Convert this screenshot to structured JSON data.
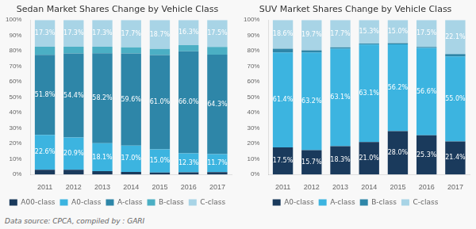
{
  "chart_data": [
    {
      "type": "bar",
      "stacked": true,
      "title": "Sedan Market Shares Change by Vehicle Class",
      "categories": [
        "2011",
        "2012",
        "2013",
        "2014",
        "2015",
        "2016",
        "2017"
      ],
      "series": [
        {
          "name": "A00-class",
          "color": "#1a3a5c",
          "values": [
            3.0,
            3.0,
            2.1,
            1.7,
            1.3,
            1.4,
            1.5
          ]
        },
        {
          "name": "A0-class",
          "color": "#3cb4e0",
          "values": [
            22.6,
            20.9,
            18.1,
            17.0,
            15.0,
            12.3,
            11.7
          ],
          "value_labels": [
            "22.6%",
            "20.9%",
            "18.1%",
            "17.0%",
            "15.0%",
            "12.3%",
            "11.7%"
          ]
        },
        {
          "name": "A-class",
          "color": "#2e86a8",
          "values": [
            51.8,
            54.4,
            58.2,
            59.6,
            61.0,
            66.0,
            64.3
          ],
          "value_labels": [
            "51.8%",
            "54.4%",
            "58.2%",
            "59.6%",
            "61.0%",
            "66.0%",
            "64.3%"
          ]
        },
        {
          "name": "B-class",
          "color": "#4bafc4",
          "values": [
            5.3,
            4.4,
            4.3,
            4.0,
            4.0,
            4.0,
            5.0
          ]
        },
        {
          "name": "C-class",
          "color": "#a8d4e6",
          "values": [
            17.3,
            17.3,
            17.3,
            17.7,
            18.7,
            16.3,
            17.5
          ],
          "value_labels": [
            "17.3%",
            "17.3%",
            "17.3%",
            "17.7%",
            "18.7%",
            "16.3%",
            "17.5%"
          ]
        }
      ],
      "ylim": [
        0,
        100
      ],
      "yticks": [
        {
          "value": 0,
          "label": "0%"
        },
        {
          "value": 10,
          "label": "10%"
        },
        {
          "value": 20,
          "label": "20%"
        },
        {
          "value": 30,
          "label": "30%"
        },
        {
          "value": 40,
          "label": "40%"
        },
        {
          "value": 50,
          "label": "50%"
        },
        {
          "value": 60,
          "label": "60%"
        },
        {
          "value": 70,
          "label": "70%"
        },
        {
          "value": 80,
          "label": "80%"
        },
        {
          "value": 90,
          "label": "90%"
        },
        {
          "value": 100,
          "label": "100%"
        }
      ],
      "grid": false,
      "legend": "bottom"
    },
    {
      "type": "bar",
      "stacked": true,
      "title": "SUV Market Shares Change by Vehicle Class",
      "categories": [
        "2011",
        "2012",
        "2013",
        "2014",
        "2015",
        "2016",
        "2017"
      ],
      "series": [
        {
          "name": "A0-class",
          "color": "#1a3a5c",
          "values": [
            17.5,
            15.7,
            18.3,
            21.0,
            28.0,
            25.3,
            21.4
          ],
          "value_labels": [
            "17.5%",
            "15.7%",
            "18.3%",
            "21.0%",
            "28.0%",
            "25.3%",
            "21.4%"
          ]
        },
        {
          "name": "A-class",
          "color": "#3cb4e0",
          "values": [
            61.4,
            63.2,
            63.1,
            63.1,
            56.2,
            56.6,
            55.0
          ],
          "value_labels": [
            "61.4%",
            "63.2%",
            "63.1%",
            "63.1%",
            "56.2%",
            "56.6%",
            "55.0%"
          ]
        },
        {
          "name": "B-class",
          "color": "#2e86a8",
          "values": [
            2.5,
            1.4,
            0.9,
            0.6,
            0.8,
            0.6,
            1.5
          ]
        },
        {
          "name": "C-class",
          "color": "#a8d4e6",
          "values": [
            18.6,
            19.7,
            17.7,
            15.3,
            15.0,
            17.5,
            22.1
          ],
          "value_labels": [
            "18.6%",
            "19.7%",
            "17.7%",
            "15.3%",
            "15.0%",
            "17.5%",
            "22.1%"
          ]
        }
      ],
      "ylim": [
        0,
        100
      ],
      "yticks": [
        {
          "value": 0,
          "label": "0%"
        },
        {
          "value": 10,
          "label": "10%"
        },
        {
          "value": 20,
          "label": "20%"
        },
        {
          "value": 30,
          "label": "30%"
        },
        {
          "value": 40,
          "label": "40%"
        },
        {
          "value": 50,
          "label": "50%"
        },
        {
          "value": 60,
          "label": "60%"
        },
        {
          "value": 70,
          "label": "70%"
        },
        {
          "value": 80,
          "label": "80%"
        },
        {
          "value": 90,
          "label": "90%"
        },
        {
          "value": 100,
          "label": "100%"
        }
      ],
      "grid": false,
      "legend": "bottom"
    }
  ],
  "footnote": "Data source: CPCA, compiled by : GARI"
}
